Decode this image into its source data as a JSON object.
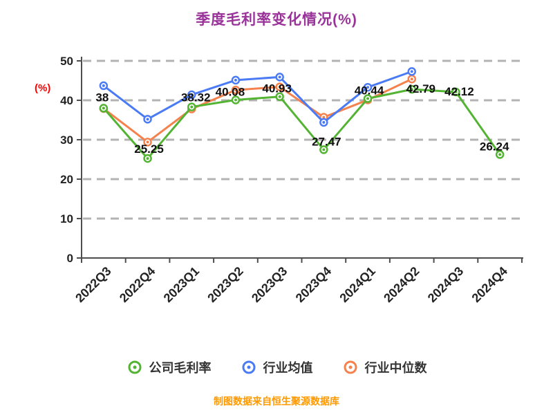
{
  "title": "季度毛利率变化情况(%)",
  "y_axis_label": "(%)",
  "footer": "制图数据来自恒生聚源数据库",
  "colors": {
    "title": "#993399",
    "y_axis_label": "#ff0000",
    "footer": "#ff9900",
    "axis_line": "#4d4d4d",
    "tick_text": "#222222",
    "grid_line": "#b3b3b3",
    "data_label": "#111111"
  },
  "chart_data": {
    "type": "line",
    "title": "季度毛利率变化情况(%)",
    "categories": [
      "2022Q3",
      "2022Q4",
      "2023Q1",
      "2023Q2",
      "2023Q3",
      "2023Q4",
      "2024Q1",
      "2024Q2",
      "2024Q3",
      "2024Q4"
    ],
    "series": [
      {
        "name": "公司毛利率",
        "color": "#53b332",
        "data_labels": true,
        "values": [
          38,
          25.25,
          38.32,
          40.08,
          40.93,
          27.47,
          40.44,
          42.79,
          42.12,
          26.24
        ]
      },
      {
        "name": "行业均值",
        "color": "#4a7bf5",
        "data_labels": false,
        "values": [
          43.7,
          35.2,
          41.4,
          45.1,
          45.9,
          34.4,
          43.3,
          47.3,
          null,
          null
        ]
      },
      {
        "name": "行业中位数",
        "color": "#f5814d",
        "data_labels": false,
        "values": [
          37.9,
          29.4,
          37.8,
          42.6,
          43.4,
          35.7,
          40.1,
          45.4,
          null,
          null
        ]
      }
    ],
    "ylim": [
      0,
      50
    ],
    "yticks": [
      0,
      10,
      20,
      30,
      40,
      50
    ],
    "grid": "dashed-horizontal",
    "legend_position": "bottom",
    "x_tick_rotation": -45
  }
}
